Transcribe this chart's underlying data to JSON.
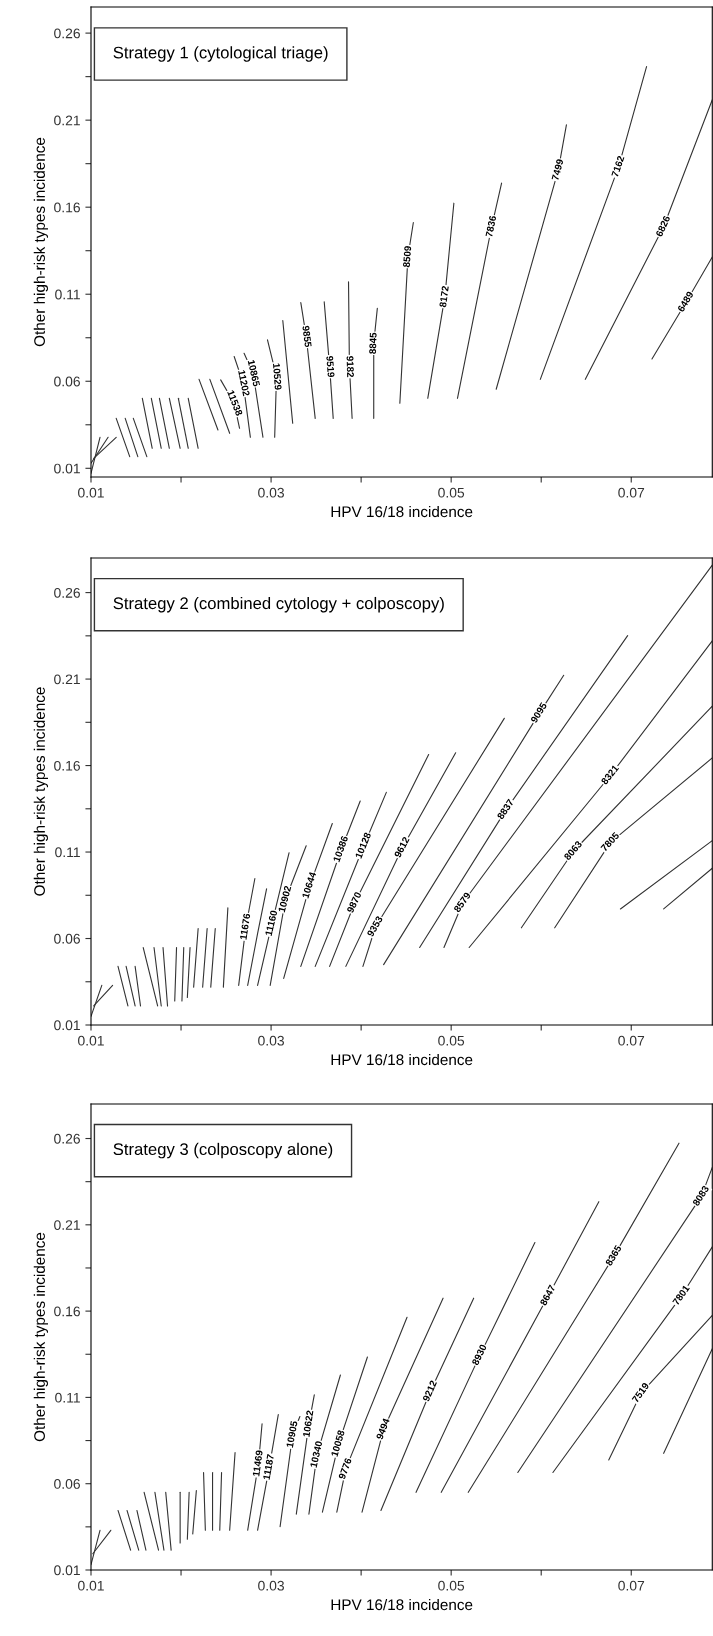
{
  "chart_data": [
    {
      "type": "line",
      "title": "Strategy 1 (cytological triage)",
      "xlabel": "HPV 16/18 incidence",
      "ylabel": "Other high-risk types incidence",
      "color": "#333333",
      "grid": false,
      "xlim": [
        0.01,
        0.079
      ],
      "ylim": [
        0.005,
        0.275
      ],
      "xticks": [
        0.01,
        {
          "value": 0.02,
          "label": null
        },
        0.03,
        {
          "value": 0.04,
          "label": null
        },
        0.05,
        {
          "value": 0.06,
          "label": null
        },
        0.07
      ],
      "yticks": [
        0.01,
        {
          "value": 0.035,
          "label": null
        },
        0.06,
        {
          "value": 0.085,
          "label": null
        },
        0.11,
        {
          "value": 0.135,
          "label": null
        },
        0.16,
        {
          "value": 0.185,
          "label": null
        },
        0.21,
        {
          "value": 0.235,
          "label": null
        },
        0.26
      ],
      "series": [
        {
          "name": "6489",
          "x": [
            0.0723,
            0.0761,
            0.079
          ],
          "values": [
            0.0728,
            0.1055,
            0.1314
          ]
        },
        {
          "name": "6826",
          "x": [
            0.0649,
            0.0736,
            0.079
          ],
          "values": [
            0.0611,
            0.1489,
            0.2217
          ]
        },
        {
          "name": "7162",
          "x": [
            0.0599,
            0.0686,
            0.0717
          ],
          "values": [
            0.0611,
            0.1833,
            0.2408
          ]
        },
        {
          "name": "7499",
          "x": [
            0.055,
            0.0619,
            0.0628
          ],
          "values": [
            0.0554,
            0.1814,
            0.2073
          ]
        },
        {
          "name": "7836",
          "x": [
            0.0507,
            0.0545,
            0.0556
          ],
          "values": [
            0.0502,
            0.1489,
            0.1738
          ]
        },
        {
          "name": "8172",
          "x": [
            0.0474,
            0.0493,
            0.0503
          ],
          "values": [
            0.0502,
            0.1086,
            0.1623
          ]
        },
        {
          "name": "8509",
          "x": [
            0.0443,
            0.0452,
            0.0458
          ],
          "values": [
            0.0474,
            0.1316,
            0.1512
          ]
        },
        {
          "name": "8845",
          "x": [
            0.0414,
            0.0414,
            0.0418
          ],
          "values": [
            0.0387,
            0.0818,
            0.1019
          ]
        },
        {
          "name": "9182",
          "x": [
            0.039,
            0.0387,
            0.0386
          ],
          "values": [
            0.0387,
            0.0684,
            0.1172
          ]
        },
        {
          "name": "9519",
          "x": [
            0.0369,
            0.0365,
            0.0359
          ],
          "values": [
            0.0387,
            0.0684,
            0.1057
          ]
        },
        {
          "name": "9855",
          "x": [
            0.0349,
            0.0339,
            0.0333
          ],
          "values": [
            0.0387,
            0.0857,
            0.1052
          ]
        },
        {
          "x": [
            0.0324,
            0.0313
          ],
          "values": [
            0.0359,
            0.0949
          ]
        },
        {
          "name": "10529",
          "x": [
            0.0304,
            0.0306,
            0.0296
          ],
          "values": [
            0.0278,
            0.0627,
            0.0838
          ]
        },
        {
          "name": "10865",
          "x": [
            0.0291,
            0.028,
            0.027
          ],
          "values": [
            0.0278,
            0.0646,
            0.0761
          ]
        },
        {
          "name": "11202",
          "x": [
            0.0277,
            0.0269,
            0.0259
          ],
          "values": [
            0.0278,
            0.0589,
            0.0742
          ]
        },
        {
          "name": "11538",
          "x": [
            0.0265,
            0.0259,
            0.0244
          ],
          "values": [
            0.033,
            0.0474,
            0.0608
          ]
        },
        {
          "x": [
            0.022,
            0.0241
          ],
          "values": [
            0.0611,
            0.032
          ]
        },
        {
          "x": [
            0.0232,
            0.0254
          ],
          "values": [
            0.0611,
            0.0301
          ]
        },
        {
          "x": [
            0.0157,
            0.0168
          ],
          "values": [
            0.0502,
            0.0215
          ]
        },
        {
          "x": [
            0.0167,
            0.0178
          ],
          "values": [
            0.0502,
            0.0215
          ]
        },
        {
          "x": [
            0.0176,
            0.0187
          ],
          "values": [
            0.0502,
            0.0215
          ]
        },
        {
          "x": [
            0.0187,
            0.0199
          ],
          "values": [
            0.0502,
            0.0215
          ]
        },
        {
          "x": [
            0.0197,
            0.0208
          ],
          "values": [
            0.0502,
            0.0215
          ]
        },
        {
          "x": [
            0.0208,
            0.0219
          ],
          "values": [
            0.0502,
            0.0215
          ]
        },
        {
          "x": [
            0.0128,
            0.0143
          ],
          "values": [
            0.0387,
            0.0167
          ]
        },
        {
          "x": [
            0.0138,
            0.0152
          ],
          "values": [
            0.0387,
            0.0167
          ]
        },
        {
          "x": [
            0.0147,
            0.0162
          ],
          "values": [
            0.0387,
            0.0167
          ]
        },
        {
          "x": [
            0.011,
            0.01
          ],
          "values": [
            0.0278,
            0.0071
          ]
        },
        {
          "x": [
            0.0119,
            0.01
          ],
          "values": [
            0.0278,
            0.0129
          ]
        },
        {
          "x": [
            0.0128,
            0.0103
          ],
          "values": [
            0.0278,
            0.0157
          ]
        }
      ]
    },
    {
      "type": "line",
      "title": "Strategy 2 (combined cytology + colposcopy)",
      "xlabel": "HPV 16/18 incidence",
      "ylabel": "Other high-risk types incidence",
      "color": "#333333",
      "grid": false,
      "xlim": [
        0.01,
        0.079
      ],
      "ylim": [
        0.01,
        0.28
      ],
      "xticks": [
        0.01,
        {
          "value": 0.02,
          "label": null
        },
        0.03,
        {
          "value": 0.04,
          "label": null
        },
        0.05,
        {
          "value": 0.06,
          "label": null
        },
        0.07
      ],
      "yticks": [
        0.01,
        {
          "value": 0.035,
          "label": null
        },
        0.06,
        {
          "value": 0.085,
          "label": null
        },
        0.11,
        {
          "value": 0.135,
          "label": null
        },
        0.16,
        {
          "value": 0.185,
          "label": null
        },
        0.21,
        {
          "value": 0.235,
          "label": null
        },
        0.26
      ],
      "series": [
        {
          "name": "11676",
          "x": [
            0.0264,
            0.0272,
            0.0282
          ],
          "values": [
            0.0329,
            0.0668,
            0.0947
          ]
        },
        {
          "x": [
            0.0274,
            0.0285,
            0.0295
          ],
          "values": [
            0.0329,
            0.0628,
            0.0887
          ]
        },
        {
          "name": "11160",
          "x": [
            0.0285,
            0.0301,
            0.032
          ],
          "values": [
            0.0329,
            0.0688,
            0.1096
          ]
        },
        {
          "name": "10902",
          "x": [
            0.0299,
            0.0316,
            0.0339
          ],
          "values": [
            0.0329,
            0.0827,
            0.1136
          ]
        },
        {
          "name": "10644",
          "x": [
            0.0314,
            0.0343,
            0.0368
          ],
          "values": [
            0.0369,
            0.0907,
            0.1265
          ]
        },
        {
          "name": "10386",
          "x": [
            0.0333,
            0.0378,
            0.0399
          ],
          "values": [
            0.0439,
            0.1116,
            0.1395
          ]
        },
        {
          "name": "10128",
          "x": [
            0.0349,
            0.0403,
            0.0428
          ],
          "values": [
            0.0439,
            0.1136,
            0.1445
          ]
        },
        {
          "name": "9870",
          "x": [
            0.0365,
            0.0393,
            0.0475
          ],
          "values": [
            0.0439,
            0.0807,
            0.1664
          ]
        },
        {
          "name": "9612",
          "x": [
            0.0383,
            0.0446,
            0.0505
          ],
          "values": [
            0.0439,
            0.1126,
            0.1674
          ]
        },
        {
          "name": "9353",
          "x": [
            0.0402,
            0.0416,
            0.0559
          ],
          "values": [
            0.0439,
            0.0668,
            0.1873
          ]
        },
        {
          "name": "9095",
          "x": [
            0.0425,
            0.0598,
            0.0625
          ],
          "values": [
            0.0449,
            0.1903,
            0.2122
          ]
        },
        {
          "name": "8837",
          "x": [
            0.0465,
            0.0561,
            0.0696
          ],
          "values": [
            0.0548,
            0.1345,
            0.2351
          ]
        },
        {
          "name": "8579",
          "x": [
            0.0492,
            0.0513,
            0.079
          ],
          "values": [
            0.0548,
            0.0807,
            0.2759
          ]
        },
        {
          "name": "8321",
          "x": [
            0.052,
            0.0677,
            0.079
          ],
          "values": [
            0.0548,
            0.1544,
            0.2321
          ]
        },
        {
          "name": "8063",
          "x": [
            0.0578,
            0.0636,
            0.079
          ],
          "values": [
            0.0662,
            0.1106,
            0.1943
          ]
        },
        {
          "name": "7805",
          "x": [
            0.0615,
            0.0677,
            0.079
          ],
          "values": [
            0.0662,
            0.1156,
            0.1644
          ]
        },
        {
          "x": [
            0.0688,
            0.079
          ],
          "values": [
            0.0771,
            0.1166
          ]
        },
        {
          "x": [
            0.0736,
            0.079
          ],
          "values": [
            0.0771,
            0.1006
          ]
        },
        {
          "x": [
            0.0219,
            0.0214
          ],
          "values": [
            0.0658,
            0.0319
          ]
        },
        {
          "x": [
            0.0229,
            0.0224
          ],
          "values": [
            0.0658,
            0.0319
          ]
        },
        {
          "x": [
            0.0238,
            0.0233
          ],
          "values": [
            0.0658,
            0.0319
          ]
        },
        {
          "x": [
            0.0252,
            0.0247
          ],
          "values": [
            0.0777,
            0.0319
          ]
        },
        {
          "x": [
            0.0158,
            0.0174
          ],
          "values": [
            0.0548,
            0.021
          ]
        },
        {
          "x": [
            0.017,
            0.0178
          ],
          "values": [
            0.0548,
            0.021
          ]
        },
        {
          "x": [
            0.018,
            0.0185
          ],
          "values": [
            0.0548,
            0.021
          ]
        },
        {
          "x": [
            0.0195,
            0.0193
          ],
          "values": [
            0.0548,
            0.0239
          ]
        },
        {
          "x": [
            0.0203,
            0.0201
          ],
          "values": [
            0.0548,
            0.0239
          ]
        },
        {
          "x": [
            0.021,
            0.0207
          ],
          "values": [
            0.0548,
            0.0259
          ]
        },
        {
          "x": [
            0.013,
            0.0141
          ],
          "values": [
            0.0439,
            0.021
          ]
        },
        {
          "x": [
            0.0139,
            0.0149
          ],
          "values": [
            0.0439,
            0.021
          ]
        },
        {
          "x": [
            0.0149,
            0.0155
          ],
          "values": [
            0.0439,
            0.021
          ]
        },
        {
          "x": [
            0.0112,
            0.01
          ],
          "values": [
            0.0329,
            0.015
          ]
        },
        {
          "x": [
            0.0124,
            0.0103
          ],
          "values": [
            0.0329,
            0.021
          ]
        }
      ]
    },
    {
      "type": "line",
      "title": "Strategy 3 (colposcopy alone)",
      "xlabel": "HPV 16/18 incidence",
      "ylabel": "Other high-risk types incidence",
      "color": "#333333",
      "grid": false,
      "xlim": [
        0.01,
        0.079
      ],
      "ylim": [
        0.01,
        0.28
      ],
      "xticks": [
        0.01,
        {
          "value": 0.02,
          "label": null
        },
        0.03,
        {
          "value": 0.04,
          "label": null
        },
        0.05,
        {
          "value": 0.06,
          "label": null
        },
        0.07
      ],
      "yticks": [
        0.01,
        {
          "value": 0.035,
          "label": null
        },
        0.06,
        {
          "value": 0.085,
          "label": null
        },
        0.11,
        {
          "value": 0.135,
          "label": null
        },
        0.16,
        {
          "value": 0.185,
          "label": null
        },
        0.21,
        {
          "value": 0.235,
          "label": null
        },
        0.26
      ],
      "series": [
        {
          "name": "11469",
          "x": [
            0.0274,
            0.0286,
            0.029
          ],
          "values": [
            0.033,
            0.0717,
            0.0947
          ]
        },
        {
          "name": "11187",
          "x": [
            0.0285,
            0.0298,
            0.0308
          ],
          "values": [
            0.033,
            0.0696,
            0.1
          ]
        },
        {
          "name": "10905",
          "x": [
            0.031,
            0.0324,
            0.0332
          ],
          "values": [
            0.0351,
            0.0885,
            0.0989
          ]
        },
        {
          "name": "10622",
          "x": [
            0.0328,
            0.0342,
            0.0348
          ],
          "values": [
            0.0424,
            0.0947,
            0.1115
          ]
        },
        {
          "name": "10340",
          "x": [
            0.0342,
            0.0351,
            0.0377
          ],
          "values": [
            0.0424,
            0.0769,
            0.123
          ]
        },
        {
          "name": "10058",
          "x": [
            0.0357,
            0.0375,
            0.0407
          ],
          "values": [
            0.0435,
            0.0832,
            0.1334
          ]
        },
        {
          "name": "9776",
          "x": [
            0.0373,
            0.0383,
            0.0451
          ],
          "values": [
            0.0435,
            0.0686,
            0.1564
          ]
        },
        {
          "name": "9494",
          "x": [
            0.0401,
            0.0425,
            0.0491
          ],
          "values": [
            0.0435,
            0.0916,
            0.1675
          ]
        },
        {
          "name": "9212",
          "x": [
            0.0422,
            0.0477,
            0.0525
          ],
          "values": [
            0.0445,
            0.1136,
            0.1675
          ]
        },
        {
          "name": "8930",
          "x": [
            0.0461,
            0.0532,
            0.0593
          ],
          "values": [
            0.055,
            0.1345,
            0.1997
          ]
        },
        {
          "name": "8647",
          "x": [
            0.0489,
            0.0608,
            0.0664
          ],
          "values": [
            0.055,
            0.169,
            0.2234
          ]
        },
        {
          "name": "8365",
          "x": [
            0.0519,
            0.0681,
            0.0753
          ],
          "values": [
            0.055,
            0.192,
            0.2573
          ]
        },
        {
          "name": "8083",
          "x": [
            0.0574,
            0.0778,
            0.079
          ],
          "values": [
            0.0665,
            0.2266,
            0.2433
          ]
        },
        {
          "name": "7801",
          "x": [
            0.0613,
            0.0756,
            0.079
          ],
          "values": [
            0.0665,
            0.169,
            0.1972
          ]
        },
        {
          "name": "7519",
          "x": [
            0.0675,
            0.0711,
            0.079
          ],
          "values": [
            0.0738,
            0.1125,
            0.1575
          ]
        },
        {
          "x": [
            0.0736,
            0.079
          ],
          "values": [
            0.0776,
            0.1382
          ]
        },
        {
          "x": [
            0.0225,
            0.0227
          ],
          "values": [
            0.0665,
            0.033
          ]
        },
        {
          "x": [
            0.0235,
            0.0235
          ],
          "values": [
            0.0665,
            0.033
          ]
        },
        {
          "x": [
            0.0245,
            0.0243
          ],
          "values": [
            0.0665,
            0.033
          ]
        },
        {
          "x": [
            0.026,
            0.0254
          ],
          "values": [
            0.078,
            0.033
          ]
        },
        {
          "x": [
            0.0159,
            0.0175
          ],
          "values": [
            0.055,
            0.0215
          ]
        },
        {
          "x": [
            0.0171,
            0.0181
          ],
          "values": [
            0.055,
            0.0215
          ]
        },
        {
          "x": [
            0.0183,
            0.0189
          ],
          "values": [
            0.055,
            0.0215
          ]
        },
        {
          "x": [
            0.0199,
            0.0199
          ],
          "values": [
            0.055,
            0.0257
          ]
        },
        {
          "x": [
            0.0209,
            0.0207
          ],
          "values": [
            0.055,
            0.0278
          ]
        },
        {
          "x": [
            0.0217,
            0.0213
          ],
          "values": [
            0.056,
            0.0309
          ]
        },
        {
          "x": [
            0.013,
            0.0144
          ],
          "values": [
            0.0445,
            0.0215
          ]
        },
        {
          "x": [
            0.014,
            0.0153
          ],
          "values": [
            0.0445,
            0.0215
          ]
        },
        {
          "x": [
            0.0151,
            0.0161
          ],
          "values": [
            0.0445,
            0.0215
          ]
        },
        {
          "x": [
            0.011,
            0.01
          ],
          "values": [
            0.033,
            0.0131
          ]
        },
        {
          "x": [
            0.0122,
            0.0102
          ],
          "values": [
            0.033,
            0.0194
          ]
        }
      ]
    }
  ]
}
